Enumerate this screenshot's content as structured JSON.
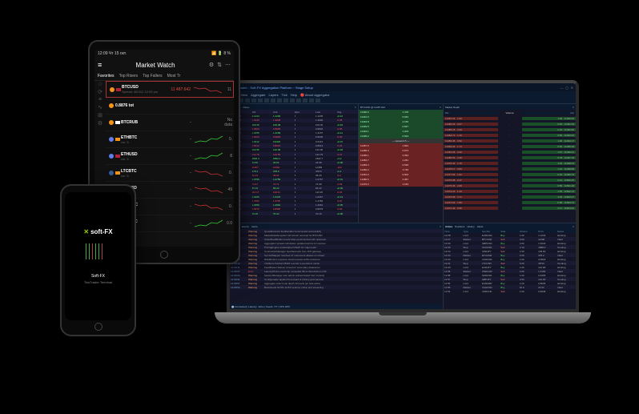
{
  "phone": {
    "logo": "soft-FX",
    "title": "Soft-FX",
    "subtitle": "TickTrader Terminal"
  },
  "tablet": {
    "status": {
      "time": "12:09",
      "date": "Чт 15 окт.",
      "battery": "8 %"
    },
    "title": "Market Watch",
    "tabs": [
      "Favorites",
      "Top Risers",
      "Top Fallers",
      "Most Tr"
    ],
    "sideIcons": [
      "☆",
      "⟳",
      "≡",
      "∿",
      "⊞",
      "⚙"
    ],
    "rows": [
      {
        "coin": "#f7931a",
        "flag": "#b22234",
        "sym": "BTCUSD",
        "price": "11 487.642",
        "priceColor": "#e74c3c",
        "sub": "Spread: 48.012  12.09 pm",
        "spark": "dn",
        "end": "11"
      },
      {
        "coin": "#f7931a",
        "flag": "",
        "sym": "0.8876 tot",
        "price": "",
        "sub": "",
        "spark": "",
        "end": ""
      },
      {
        "coin": "#f7931a",
        "flag": "#fff",
        "sym": "BTCRUB",
        "price": "-",
        "sub": "",
        "spark": "none",
        "end": "No data"
      },
      {
        "coin": "#627eea",
        "flag": "#f7931a",
        "sym": "ETHBTC",
        "price": "-",
        "sub": "vol. 5",
        "spark": "up",
        "end": "0."
      },
      {
        "coin": "#627eea",
        "flag": "#b22234",
        "sym": "ETHUSD",
        "price": "-",
        "sub": "vol. 5",
        "spark": "up",
        "end": "8"
      },
      {
        "coin": "#345d9d",
        "flag": "#f7931a",
        "sym": "LTCBTC",
        "price": "-",
        "sub": "vol. 5",
        "spark": "dn",
        "end": "0."
      },
      {
        "coin": "#345d9d",
        "flag": "#b22234",
        "sym": "LTCUSD",
        "price": "-",
        "sub": "vol. 5",
        "spark": "dn",
        "end": "49"
      },
      {
        "coin": "#f7931a",
        "flag": "#f7931a",
        "sym": "BCHBTC",
        "price": "-",
        "sub": "vol. 5",
        "spark": "dn",
        "end": "0."
      },
      {
        "coin": "#008de4",
        "flag": "#f7931a",
        "sym": "DSHBTC",
        "price": "-",
        "sub": "vol. 5",
        "spark": "up",
        "end": "0.0"
      }
    ]
  },
  "laptop": {
    "title": "TickTrader - Soft-FX Aggregation Platform :: Stage Setup",
    "menu": [
      "File",
      "View",
      "Aggregate",
      "Layers",
      "Tick",
      "Help",
      "🔴 About aggregator"
    ],
    "watchHead": [
      "Symb",
      "Bid",
      "Ask",
      "Spre",
      "Last",
      "Chg"
    ],
    "watch": [
      [
        "EURUSD",
        "1.1234",
        "1.1236",
        "2",
        "1.1235",
        "+0.12",
        "up"
      ],
      [
        "GBPUSD",
        "1.3045",
        "1.3048",
        "3",
        "1.3046",
        "-0.08",
        "dn"
      ],
      [
        "USDJPY",
        "109.45",
        "109.48",
        "3",
        "109.46",
        "+0.23",
        "up"
      ],
      [
        "AUDUSD",
        "0.6823",
        "0.6825",
        "2",
        "0.6824",
        "-0.05",
        "dn"
      ],
      [
        "USDCAD",
        "1.3156",
        "1.3159",
        "3",
        "1.3157",
        "+0.11",
        "up"
      ],
      [
        "USDCHF",
        "0.9934",
        "0.9936",
        "2",
        "0.9935",
        "-0.02",
        "dn"
      ],
      [
        "NZDUSD",
        "0.6412",
        "0.6415",
        "3",
        "0.6413",
        "+0.07",
        "up"
      ],
      [
        "EURGBP",
        "0.8612",
        "0.8615",
        "3",
        "0.8613",
        "-0.03",
        "dn"
      ],
      [
        "EURJPY",
        "122.95",
        "122.99",
        "4",
        "122.96",
        "+0.18",
        "up"
      ],
      [
        "GBPJPY",
        "142.78",
        "142.83",
        "5",
        "142.79",
        "-0.21",
        "dn"
      ],
      [
        "XAUUSD",
        "1892.4",
        "1893.1",
        "7",
        "1892.7",
        "+4.2",
        "up"
      ],
      [
        "XAGUSD",
        "24.56",
        "24.61",
        "5",
        "24.58",
        "+0.08",
        "up"
      ],
      [
        "BTCUSD",
        "11487",
        "11492",
        "5",
        "11489",
        "-123",
        "dn"
      ],
      [
        "ETHUSD",
        "378.4",
        "378.9",
        "5",
        "378.6",
        "+2.1",
        "up"
      ],
      [
        "LTCUSD",
        "49.23",
        "49.31",
        "8",
        "49.26",
        "-0.4",
        "dn"
      ],
      [
        "EURCHF",
        "1.0756",
        "1.0759",
        "3",
        "1.0757",
        "+0.01",
        "up"
      ],
      [
        "AUDJPY",
        "74.67",
        "74.71",
        "4",
        "74.68",
        "-0.09",
        "dn"
      ],
      [
        "CADJPY",
        "83.19",
        "83.23",
        "4",
        "83.20",
        "+0.06",
        "up"
      ],
      [
        "CHFJPY",
        "110.17",
        "110.21",
        "4",
        "110.18",
        "-0.04",
        "dn"
      ],
      [
        "EURAUD",
        "1.6465",
        "1.6470",
        "5",
        "1.6467",
        "+0.13",
        "up"
      ],
      [
        "EURCAD",
        "1.4782",
        "1.4787",
        "5",
        "1.4784",
        "-0.07",
        "dn"
      ],
      [
        "GBPCHF",
        "1.2959",
        "1.2964",
        "5",
        "1.2961",
        "+0.05",
        "up"
      ],
      [
        "AUDCAD",
        "0.8976",
        "0.8980",
        "4",
        "0.8978",
        "-0.03",
        "dn"
      ],
      [
        "NZDJPY",
        "70.18",
        "70.22",
        "4",
        "70.19",
        "+0.08",
        "up"
      ]
    ],
    "depthSymbol": "BTCUSD @ 11487.642",
    "asks": [
      [
        "11495.2",
        "0.524"
      ],
      [
        "11494.1",
        "1.203"
      ],
      [
        "11493.5",
        "0.847"
      ],
      [
        "11492.8",
        "2.156"
      ],
      [
        "11491.6",
        "0.932"
      ],
      [
        "11490.9",
        "1.478"
      ]
    ],
    "bids": [
      [
        "11487.6",
        "1.842"
      ],
      [
        "11486.3",
        "0.673"
      ],
      [
        "11485.1",
        "2.094"
      ],
      [
        "11484.7",
        "1.261"
      ],
      [
        "11483.4",
        "0.518"
      ],
      [
        "11482.2",
        "1.736"
      ],
      [
        "11481.0",
        "0.904"
      ],
      [
        "11480.5",
        "2.387"
      ],
      [
        "11479.3",
        "1.152"
      ]
    ],
    "domHead": {
      "bid": "Bid",
      "ask": "Ask",
      "vol": "Volume"
    },
    "dom": [
      {
        "bp": "11487.64",
        "bv": "1.84",
        "ap": "11490.91",
        "av": "1.48"
      },
      {
        "bp": "11486.32",
        "bv": "0.67",
        "ap": "11491.63",
        "av": "0.93"
      },
      {
        "bp": "11485.18",
        "bv": "2.09",
        "ap": "11492.84",
        "av": "2.16"
      },
      {
        "bp": "11484.71",
        "bv": "1.26",
        "ap": "11493.52",
        "av": "0.85"
      },
      {
        "bp": "11483.45",
        "bv": "0.52",
        "ap": "11494.17",
        "av": "1.20"
      },
      {
        "bp": "11482.23",
        "bv": "1.74",
        "ap": "11495.28",
        "av": "0.52"
      },
      {
        "bp": "11481.06",
        "bv": "0.90",
        "ap": "11496.41",
        "av": "1.67"
      },
      {
        "bp": "11480.54",
        "bv": "2.39",
        "ap": "11497.19",
        "av": "0.78"
      },
      {
        "bp": "11479.32",
        "bv": "1.15",
        "ap": "11498.03",
        "av": "1.94"
      },
      {
        "bp": "11478.17",
        "bv": "0.83",
        "ap": "11498.86",
        "av": "1.12"
      },
      {
        "bp": "11477.04",
        "bv": "1.62",
        "ap": "11499.72",
        "av": "0.64"
      },
      {
        "bp": "11476.58",
        "bv": "0.47",
        "ap": "11500.45",
        "av": "2.31"
      },
      {
        "bp": "11475.36",
        "bv": "2.08",
        "ap": "11501.28",
        "av": "0.89"
      },
      {
        "bp": "11474.21",
        "bv": "1.34",
        "ap": "11502.13",
        "av": "1.56"
      },
      {
        "bp": "11473.09",
        "bv": "0.71",
        "ap": "11502.97",
        "av": "1.03"
      },
      {
        "bp": "11472.64",
        "bv": "1.89",
        "ap": "11503.74",
        "av": "0.58"
      },
      {
        "bp": "11471.42",
        "bv": "0.96",
        "ap": "11504.61",
        "av": "2.17"
      }
    ],
    "logTabs": [
      "Journal",
      "Events",
      "Alerts"
    ],
    "logs": [
      {
        "t": "12:09:42",
        "ty": "Warning",
        "msg": "QuoteReceiver feedhandler reconnected successfully"
      },
      {
        "t": "12:09:38",
        "ty": "Warning",
        "msg": "MarketDataSnapshot full refresh received for BTCUSD"
      },
      {
        "t": "12:09:35",
        "ty": "Warning",
        "msg": "OrderBookBuilder level2 data synchronized with upstream"
      },
      {
        "t": "12:09:31",
        "ty": "Warning",
        "msg": "Aggregator spread calculation updated across 12 sources"
      },
      {
        "t": "12:09:28",
        "ty": "Warning",
        "msg": "PricingEngine recalculated VWAP for major pairs"
      },
      {
        "t": "12:09:24",
        "ty": "Warning",
        "msg": "ConnectionManager heartbeat ack from LP3 gateway"
      },
      {
        "t": "12:09:21",
        "ty": "Warning",
        "msg": "SymbolMapper resolved 47 instrument aliases on reload"
      },
      {
        "t": "12:09:17",
        "ty": "Warning",
        "msg": "RiskMonitor exposure check passed within tolerance"
      },
      {
        "t": "12:09:14",
        "ty": "Warning",
        "msg": "TickStore flushed 18432 records to persistent cache"
      },
      {
        "t": "12:09:11",
        "ty": "Warning",
        "msg": "FeedRouter failover armed for secondary datacenter"
      },
      {
        "t": "12:09:07",
        "ty": "Error",
        "msg": "LatencyProbe round-trip exceeded 45ms threshold on LP2"
      },
      {
        "t": "12:09:04",
        "ty": "Warning",
        "msg": "SessionManager user admin authenticated from console"
      },
      {
        "t": "12:09:01",
        "ty": "Warning",
        "msg": "ConfigLoader applied hot-reload of pricing.yaml params"
      },
      {
        "t": "12:08:57",
        "ty": "Warning",
        "msg": "Aggregate order book depth 10 levels per side active"
      },
      {
        "t": "12:08:54",
        "ty": "Warning",
        "msg": "BookFeeds 54.8% 12.8% sources online and streaming"
      }
    ],
    "statusBar": "⬤ Connected  |  Latency: 12ms  |  Feeds: 7/7  |  CPU 18%",
    "ordTabs": [
      "Orders",
      "Positions",
      "History",
      "Alerts"
    ],
    "ordHead": [
      "Time",
      "Type",
      "Symbol",
      "Side",
      "Volume",
      "Price",
      "Status"
    ],
    "orders": [
      [
        "12:08",
        "Limit",
        "EURUSD",
        "Buy",
        "1.00",
        "1.1232",
        "Working"
      ],
      [
        "12:07",
        "Market",
        "BTCUSD",
        "Sell",
        "0.50",
        "11490",
        "Filled"
      ],
      [
        "12:06",
        "Limit",
        "GBPUSD",
        "Buy",
        "2.00",
        "1.3040",
        "Working"
      ],
      [
        "12:05",
        "Stop",
        "XAUUSD",
        "Sell",
        "0.10",
        "1888.0",
        "Pending"
      ],
      [
        "12:04",
        "Limit",
        "USDJPY",
        "Sell",
        "1.50",
        "109.60",
        "Working"
      ],
      [
        "12:03",
        "Market",
        "ETHUSD",
        "Buy",
        "3.00",
        "378.2",
        "Filled"
      ],
      [
        "12:02",
        "Limit",
        "AUDUSD",
        "Buy",
        "1.00",
        "0.6818",
        "Working"
      ],
      [
        "12:01",
        "Stop",
        "LTCUSD",
        "Sell",
        "5.00",
        "48.50",
        "Pending"
      ],
      [
        "12:00",
        "Limit",
        "EURJPY",
        "Buy",
        "1.00",
        "122.80",
        "Working"
      ],
      [
        "11:59",
        "Market",
        "USDCAD",
        "Sell",
        "2.00",
        "1.3160",
        "Filled"
      ],
      [
        "11:58",
        "Limit",
        "NZDUSD",
        "Buy",
        "1.50",
        "0.6405",
        "Working"
      ],
      [
        "11:57",
        "Stop",
        "GBPJPY",
        "Sell",
        "0.50",
        "142.00",
        "Pending"
      ],
      [
        "11:56",
        "Limit",
        "EURGBP",
        "Buy",
        "1.00",
        "0.8605",
        "Working"
      ],
      [
        "11:55",
        "Market",
        "XAGUSD",
        "Buy",
        "10.0",
        "24.52",
        "Filled"
      ],
      [
        "11:54",
        "Limit",
        "USDCHF",
        "Sell",
        "1.00",
        "0.9945",
        "Working"
      ]
    ]
  }
}
